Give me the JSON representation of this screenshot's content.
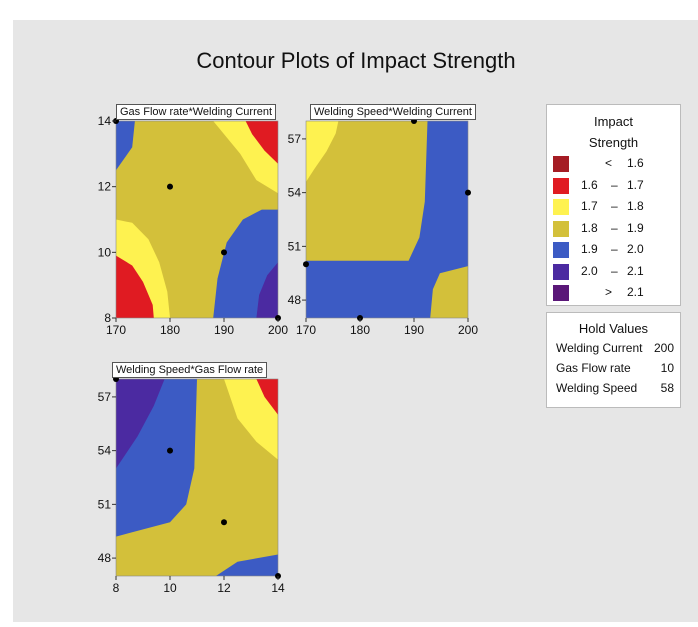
{
  "title": "Contour Plots of Impact Strength",
  "colors": {
    "lt_1.6": "#a51c24",
    "1.6-1.7": "#e01b22",
    "1.7-1.8": "#fef250",
    "1.8-1.9": "#d3c03a",
    "1.9-2.0": "#3c5bc4",
    "2.0-2.1": "#4b2aa1",
    "gt_2.1": "#5a1778",
    "background": "#e6e6e6"
  },
  "legend": {
    "title": "Impact Strength",
    "items": [
      {
        "lo": "<",
        "hi": "1.6",
        "color_key": "lt_1.6"
      },
      {
        "lo": "1.6",
        "hi": "1.7",
        "color_key": "1.6-1.7"
      },
      {
        "lo": "1.7",
        "hi": "1.8",
        "color_key": "1.7-1.8"
      },
      {
        "lo": "1.8",
        "hi": "1.9",
        "color_key": "1.8-1.9"
      },
      {
        "lo": "1.9",
        "hi": "2.0",
        "color_key": "1.9-2.0"
      },
      {
        "lo": "2.0",
        "hi": "2.1",
        "color_key": "2.0-2.1"
      },
      {
        "lo": ">",
        "hi": "2.1",
        "color_key": "gt_2.1"
      }
    ]
  },
  "hold_values": {
    "title": "Hold Values",
    "items": [
      {
        "name": "Welding Current",
        "value": "200"
      },
      {
        "name": "Gas Flow rate",
        "value": "10"
      },
      {
        "name": "Welding Speed",
        "value": "58"
      }
    ]
  },
  "chart_data": [
    {
      "type": "contour",
      "title": "Gas Flow rate*Welding Current",
      "x_variable": "Welding Current",
      "y_variable": "Gas Flow rate",
      "xlim": [
        170,
        200
      ],
      "ylim": [
        8,
        14
      ],
      "x_ticks": [
        170,
        180,
        190,
        200
      ],
      "y_ticks": [
        8,
        10,
        12,
        14
      ],
      "design_points": [
        [
          170,
          14
        ],
        [
          180,
          12
        ],
        [
          190,
          10
        ],
        [
          200,
          8
        ]
      ],
      "regions": [
        {
          "level": "1.9-2.0",
          "poly": [
            [
              170,
              14
            ],
            [
              173.5,
              14
            ],
            [
              173,
              13.2
            ],
            [
              170,
              12.5
            ]
          ]
        },
        {
          "level": "1.7-1.8",
          "poly": [
            [
              188,
              14
            ],
            [
              200,
              14
            ],
            [
              200,
              11.8
            ],
            [
              196,
              12.2
            ],
            [
              193,
              13
            ],
            [
              190,
              13.6
            ]
          ]
        },
        {
          "level": "1.6-1.7",
          "poly": [
            [
              194,
              14
            ],
            [
              200,
              14
            ],
            [
              200,
              12.7
            ],
            [
              197.5,
              13.1
            ],
            [
              195.2,
              13.6
            ]
          ]
        },
        {
          "level": "1.7-1.8",
          "poly": [
            [
              170,
              11
            ],
            [
              173,
              10.9
            ],
            [
              176,
              10.4
            ],
            [
              178,
              9.7
            ],
            [
              179.5,
              8.8
            ],
            [
              180,
              8
            ],
            [
              170,
              8
            ]
          ]
        },
        {
          "level": "1.6-1.7",
          "poly": [
            [
              170,
              9.9
            ],
            [
              173,
              9.6
            ],
            [
              175,
              9.1
            ],
            [
              176.8,
              8.4
            ],
            [
              177,
              8
            ],
            [
              170,
              8
            ]
          ]
        },
        {
          "level": "1.9-2.0",
          "poly": [
            [
              188,
              8
            ],
            [
              188.8,
              9.2
            ],
            [
              190.5,
              10.3
            ],
            [
              193.5,
              11
            ],
            [
              197,
              11.3
            ],
            [
              200,
              11.3
            ],
            [
              200,
              8
            ]
          ]
        },
        {
          "level": "2.0-2.1",
          "poly": [
            [
              196,
              8
            ],
            [
              196.5,
              8.7
            ],
            [
              198,
              9.3
            ],
            [
              200,
              9.7
            ],
            [
              200,
              8
            ]
          ]
        }
      ]
    },
    {
      "type": "contour",
      "title": "Welding Speed*Welding Current",
      "x_variable": "Welding Current",
      "y_variable": "Welding Speed",
      "xlim": [
        170,
        200
      ],
      "ylim": [
        47,
        58
      ],
      "x_ticks": [
        170,
        180,
        190,
        200
      ],
      "y_ticks": [
        48,
        51,
        54,
        57
      ],
      "design_points": [
        [
          190,
          58
        ],
        [
          200,
          54
        ],
        [
          170,
          50
        ],
        [
          180,
          47
        ]
      ],
      "regions": [
        {
          "level": "1.9-2.0",
          "poly": [
            [
              192.5,
              58
            ],
            [
              200,
              58
            ],
            [
              200,
              47
            ],
            [
              170,
              47
            ],
            [
              170,
              50.2
            ],
            [
              189,
              50.2
            ],
            [
              191,
              51.5
            ],
            [
              192,
              53.5
            ]
          ]
        },
        {
          "level": "1.7-1.8",
          "poly": [
            [
              170,
              54.6
            ],
            [
              171.5,
              55.3
            ],
            [
              173.8,
              56.3
            ],
            [
              175.5,
              57.3
            ],
            [
              176,
              58
            ],
            [
              170,
              58
            ]
          ]
        },
        {
          "level": "1.8-1.9",
          "poly": [
            [
              193,
              47
            ],
            [
              193.5,
              48.6
            ],
            [
              194.8,
              49.5
            ],
            [
              200,
              49.9
            ],
            [
              200,
              47
            ]
          ]
        }
      ]
    },
    {
      "type": "contour",
      "title": "Welding Speed*Gas Flow rate",
      "x_variable": "Gas Flow rate",
      "y_variable": "Welding Speed",
      "xlim": [
        8,
        14
      ],
      "ylim": [
        47,
        58
      ],
      "x_ticks": [
        8,
        10,
        12,
        14
      ],
      "y_ticks": [
        48,
        51,
        54,
        57
      ],
      "design_points": [
        [
          8,
          58
        ],
        [
          10,
          54
        ],
        [
          12,
          50
        ],
        [
          14,
          47
        ]
      ],
      "regions": [
        {
          "level": "1.9-2.0",
          "poly": [
            [
              8,
              58
            ],
            [
              11,
              58
            ],
            [
              10.9,
              53
            ],
            [
              10.6,
              51
            ],
            [
              10,
              50
            ],
            [
              8,
              49.2
            ]
          ]
        },
        {
          "level": "2.0-2.1",
          "poly": [
            [
              8,
              58
            ],
            [
              9.8,
              58
            ],
            [
              9.4,
              56.5
            ],
            [
              8.8,
              54.8
            ],
            [
              8,
              53
            ]
          ]
        },
        {
          "level": "1.7-1.8",
          "poly": [
            [
              12,
              58
            ],
            [
              14,
              58
            ],
            [
              14,
              53.5
            ],
            [
              13.2,
              54.5
            ],
            [
              12.5,
              55.8
            ]
          ]
        },
        {
          "level": "1.6-1.7",
          "poly": [
            [
              13.2,
              58
            ],
            [
              14,
              58
            ],
            [
              14,
              56
            ],
            [
              13.5,
              57
            ]
          ]
        },
        {
          "level": "1.9-2.0",
          "poly": [
            [
              11.7,
              47
            ],
            [
              12.5,
              47.8
            ],
            [
              14,
              48.2
            ],
            [
              14,
              47
            ]
          ]
        }
      ]
    }
  ]
}
